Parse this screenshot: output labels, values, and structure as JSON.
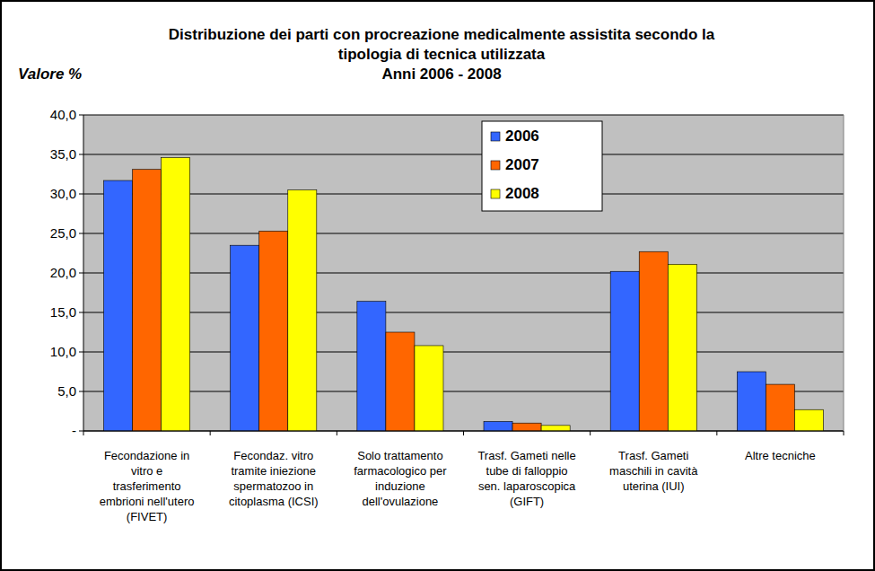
{
  "chart_data": {
    "type": "bar",
    "title": "Distribuzione dei parti con procreazione medicalmente assistita secondo la\ntipologia di tecnica utilizzata",
    "subtitle": "Anni 2006 - 2008",
    "y_label": "Valore %",
    "categories": [
      "Fecondazione in\nvitro e\ntrasferimento\nembrioni nell'utero\n(FIVET)",
      "Fecondaz. vitro\ntramite iniezione\nspermatozoo in\ncitoplasma (ICSI)",
      "Solo trattamento\nfarmacologico per\ninduzione\ndell'ovulazione",
      "Trasf. Gameti nelle\ntube di falloppio\nsen. laparoscopica\n(GIFT)",
      "Trasf. Gameti\nmaschili in cavità\nuterina (IUI)",
      "Altre tecniche"
    ],
    "series": [
      {
        "name": "2006",
        "color": "#3366ff",
        "values": [
          31.7,
          23.5,
          16.4,
          1.2,
          20.2,
          7.5
        ]
      },
      {
        "name": "2007",
        "color": "#ff6600",
        "values": [
          33.1,
          25.3,
          12.5,
          1.0,
          22.7,
          5.9
        ]
      },
      {
        "name": "2008",
        "color": "#ffff00",
        "values": [
          34.6,
          30.5,
          10.8,
          0.7,
          21.1,
          2.7
        ]
      }
    ],
    "ylim": [
      0,
      40
    ],
    "yticks": [
      {
        "value": 0,
        "label": "-"
      },
      {
        "value": 5,
        "label": "5,0"
      },
      {
        "value": 10,
        "label": "10,0"
      },
      {
        "value": 15,
        "label": "15,0"
      },
      {
        "value": 20,
        "label": "20,0"
      },
      {
        "value": 25,
        "label": "25,0"
      },
      {
        "value": 30,
        "label": "30,0"
      },
      {
        "value": 35,
        "label": "35,0"
      },
      {
        "value": 40,
        "label": "40,0"
      }
    ],
    "grid": true,
    "legend": "top"
  }
}
